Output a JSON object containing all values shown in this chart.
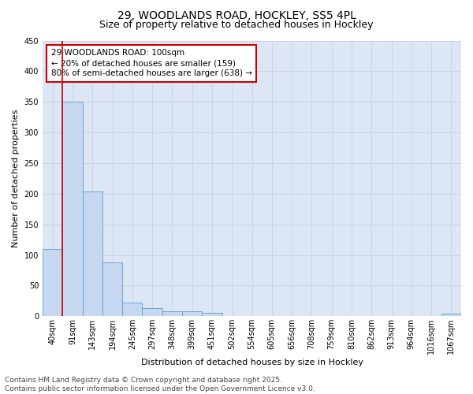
{
  "title": "29, WOODLANDS ROAD, HOCKLEY, SS5 4PL",
  "subtitle": "Size of property relative to detached houses in Hockley",
  "xlabel": "Distribution of detached houses by size in Hockley",
  "ylabel": "Number of detached properties",
  "footer_line1": "Contains HM Land Registry data © Crown copyright and database right 2025.",
  "footer_line2": "Contains public sector information licensed under the Open Government Licence v3.0.",
  "annotation_title": "29 WOODLANDS ROAD: 100sqm",
  "annotation_line1": "← 20% of detached houses are smaller (159)",
  "annotation_line2": "80% of semi-detached houses are larger (638) →",
  "property_line_x": 1,
  "bar_labels": [
    "40sqm",
    "91sqm",
    "143sqm",
    "194sqm",
    "245sqm",
    "297sqm",
    "348sqm",
    "399sqm",
    "451sqm",
    "502sqm",
    "554sqm",
    "605sqm",
    "656sqm",
    "708sqm",
    "759sqm",
    "810sqm",
    "862sqm",
    "913sqm",
    "964sqm",
    "1016sqm",
    "1067sqm"
  ],
  "bar_values": [
    110,
    350,
    204,
    88,
    22,
    13,
    8,
    8,
    5,
    1,
    0,
    0,
    0,
    0,
    0,
    0,
    0,
    0,
    0,
    0,
    4
  ],
  "bar_color": "#c5d8f0",
  "bar_edge_color": "#5a9fd4",
  "grid_color": "#c8d4e8",
  "background_color": "#dce6f5",
  "annotation_box_color": "#cc0000",
  "property_line_color": "#cc0000",
  "ylim": [
    0,
    450
  ],
  "yticks": [
    0,
    50,
    100,
    150,
    200,
    250,
    300,
    350,
    400,
    450
  ],
  "title_fontsize": 10,
  "subtitle_fontsize": 9,
  "xlabel_fontsize": 8,
  "ylabel_fontsize": 8,
  "tick_fontsize": 7,
  "annotation_fontsize": 7.5,
  "footer_fontsize": 6.5
}
